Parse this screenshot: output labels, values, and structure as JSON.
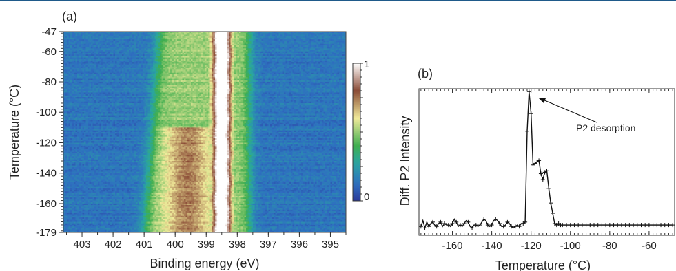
{
  "chart_data": [
    {
      "type": "heatmap",
      "panel_label": "(a)",
      "xlabel": "Binding energy (eV)",
      "ylabel": "Temperature (°C)",
      "xlim": [
        403.6,
        394.5
      ],
      "ylim": [
        -179,
        -47
      ],
      "x_reversed": true,
      "x_ticks": [
        "403",
        "402",
        "401",
        "400",
        "399",
        "398",
        "397",
        "396",
        "395"
      ],
      "x_tick_values": [
        403,
        402,
        401,
        400,
        399,
        398,
        397,
        396,
        395
      ],
      "y_ticks": [
        "-47",
        "-60",
        "-80",
        "-100",
        "-120",
        "-140",
        "-160",
        "-179"
      ],
      "y_tick_values": [
        -47,
        -60,
        -80,
        -100,
        -120,
        -140,
        -160,
        -179
      ],
      "colorbar": {
        "min": 0,
        "max": 1,
        "min_label": "0",
        "max_label": "1",
        "colors": [
          "#2b3a9a",
          "#2e6fc0",
          "#2aa6a0",
          "#3fae4f",
          "#f0ea9a",
          "#8a4b36",
          "#ffffff"
        ]
      },
      "features": {
        "main_peak_center_eV": 398.5,
        "main_peak_edges_eV": [
          398.8,
          398.1
        ],
        "shoulder_component_eV": 399.6,
        "shoulder_temp_range_C": [
          -179,
          -110
        ],
        "shoulder_edge_high_T_eV": 400.5,
        "shoulder_edge_low_T_eV": 401.0
      }
    },
    {
      "type": "line",
      "panel_label": "(b)",
      "xlabel": "Temperature (°C)",
      "ylabel": "Diff. P2 Intensity",
      "xlim": [
        -177,
        -47
      ],
      "ylim": [
        0,
        1
      ],
      "x_ticks": [
        "-160",
        "-140",
        "-120",
        "-100",
        "-80",
        "-60"
      ],
      "x_tick_values": [
        -160,
        -140,
        -120,
        -100,
        -80,
        -60
      ],
      "annotation": {
        "text": "P2 desorption",
        "x": -121,
        "y": 0.98
      },
      "series": [
        {
          "x": [
            -176,
            -175,
            -174,
            -173,
            -172,
            -171,
            -170,
            -169,
            -168,
            -167,
            -166,
            -165,
            -164,
            -163,
            -162,
            -161,
            -160,
            -159,
            -158,
            -157,
            -156,
            -155,
            -154,
            -153,
            -152,
            -151,
            -150,
            -149,
            -148,
            -147,
            -146,
            -145,
            -144,
            -143,
            -142,
            -141,
            -140,
            -139,
            -138,
            -137,
            -136,
            -135,
            -134,
            -133,
            -132,
            -131,
            -130,
            -129,
            -128,
            -127,
            -126,
            -125,
            -124,
            -123,
            -122,
            -121,
            -120,
            -119,
            -118,
            -117,
            -116,
            -115,
            -114,
            -113,
            -112,
            -111,
            -110,
            -109,
            -108,
            -107,
            -106,
            -105,
            -104,
            -103,
            -102,
            -101,
            -100,
            -99,
            -98,
            -97,
            -96,
            -95,
            -94,
            -93,
            -92,
            -91,
            -90,
            -89,
            -88,
            -87,
            -86,
            -85,
            -84,
            -83,
            -82,
            -81,
            -80,
            -79,
            -78,
            -77,
            -76,
            -75,
            -74,
            -73,
            -72,
            -71,
            -70,
            -69,
            -68,
            -67,
            -66,
            -65,
            -64,
            -63,
            -62,
            -61,
            -60,
            -59,
            -58,
            -57,
            -56,
            -55,
            -54,
            -53,
            -52,
            -51,
            -50,
            -49,
            -48
          ],
          "y": [
            0.06,
            0.1,
            0.05,
            0.09,
            0.06,
            0.08,
            0.09,
            0.07,
            0.06,
            0.08,
            0.09,
            0.06,
            0.08,
            0.07,
            0.07,
            0.06,
            0.08,
            0.11,
            0.09,
            0.06,
            0.07,
            0.06,
            0.08,
            0.1,
            0.09,
            0.06,
            0.05,
            0.07,
            0.07,
            0.06,
            0.07,
            0.09,
            0.11,
            0.1,
            0.07,
            0.06,
            0.07,
            0.1,
            0.11,
            0.1,
            0.08,
            0.06,
            0.06,
            0.07,
            0.09,
            0.08,
            0.06,
            0.05,
            0.06,
            0.07,
            0.06,
            0.08,
            0.08,
            0.09,
            0.71,
            0.98,
            0.83,
            0.48,
            0.49,
            0.5,
            0.51,
            0.42,
            0.38,
            0.43,
            0.44,
            0.32,
            0.22,
            0.15,
            0.08,
            0.07,
            0.08,
            0.07,
            0.07,
            0.07,
            0.07,
            0.07,
            0.07,
            0.07,
            0.07,
            0.07,
            0.07,
            0.07,
            0.07,
            0.07,
            0.07,
            0.07,
            0.07,
            0.07,
            0.07,
            0.07,
            0.07,
            0.07,
            0.07,
            0.07,
            0.07,
            0.07,
            0.07,
            0.07,
            0.07,
            0.07,
            0.07,
            0.07,
            0.07,
            0.07,
            0.07,
            0.07,
            0.07,
            0.07,
            0.07,
            0.07,
            0.07,
            0.07,
            0.07,
            0.07,
            0.07,
            0.07,
            0.07,
            0.07,
            0.07,
            0.07,
            0.07,
            0.07,
            0.07,
            0.07,
            0.07,
            0.07,
            0.07,
            0.07,
            0.07
          ]
        }
      ]
    }
  ]
}
